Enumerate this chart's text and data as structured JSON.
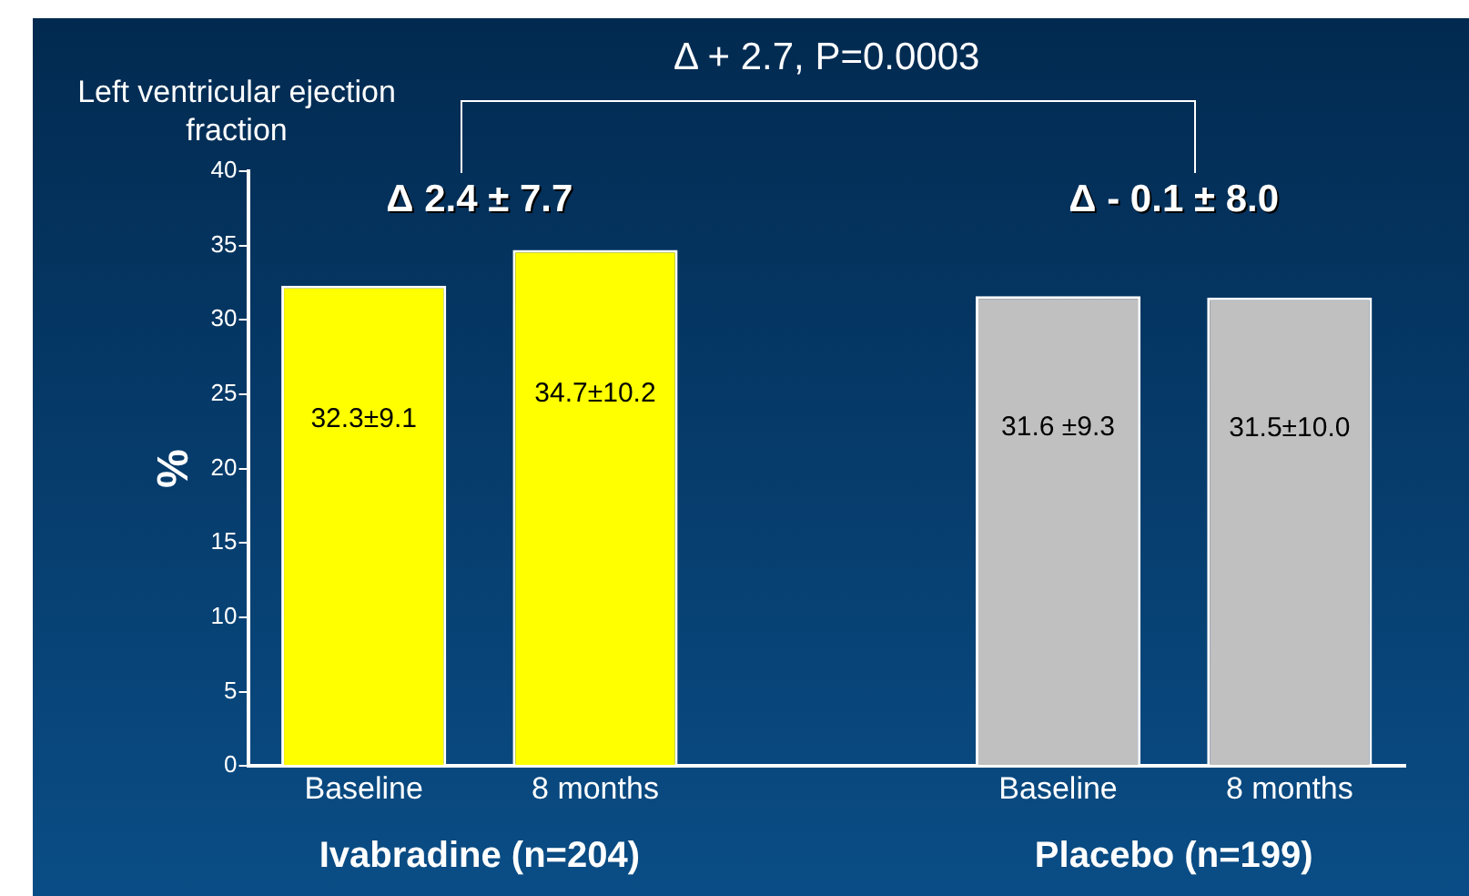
{
  "chart_data": {
    "type": "bar",
    "title": "Left ventricular ejection fraction",
    "ylabel": "%",
    "categories": [
      "Baseline",
      "8 months",
      null,
      "Baseline",
      "8 months"
    ],
    "values": [
      32.3,
      34.7,
      null,
      31.6,
      31.5
    ],
    "colors": [
      "#ffff00",
      "#ffff00",
      "#c0c0c0",
      "#c0c0c0",
      "#c0c0c0"
    ],
    "value_labels": [
      "32.3±9.1",
      "34.7±10.2",
      null,
      "31.6 ±9.3",
      "31.5±10.0"
    ],
    "ylim": [
      0,
      40
    ],
    "yticks": [
      0,
      5,
      10,
      15,
      20,
      25,
      30,
      35,
      40
    ],
    "grid": false,
    "legend": false,
    "annotations": [
      "Δ 2.4 ± 7.7",
      "Δ - 0.1 ± 8.0",
      "Δ + 2.7, P=0.0003",
      "Ivabradine (n=204)",
      "Placebo (n=199)"
    ]
  }
}
